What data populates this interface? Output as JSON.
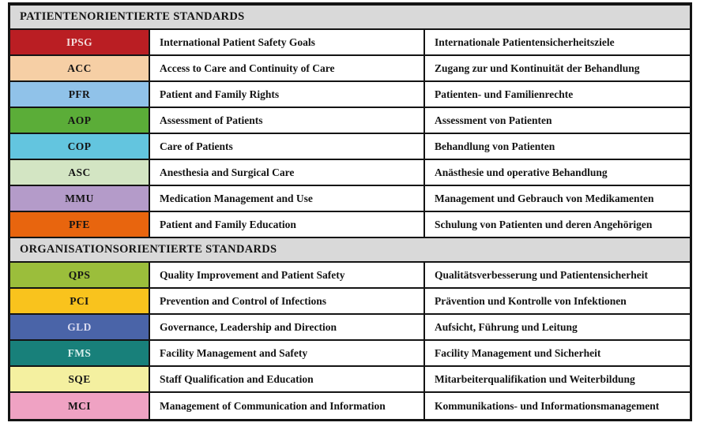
{
  "table": {
    "sections": [
      {
        "title": "PATIENTENORIENTIERTE STANDARDS",
        "rows": [
          {
            "abbr": "IPSG",
            "en": "International Patient Safety Goals",
            "de": "Internationale Patientensicherheitsziele",
            "bg": "#ba1e23",
            "fg": "#f2dbd9"
          },
          {
            "abbr": "ACC",
            "en": "Access to Care and Continuity of Care",
            "de": "Zugang zur und Kontinuität der Behandlung",
            "bg": "#f6cfa5",
            "fg": "#141414"
          },
          {
            "abbr": "PFR",
            "en": "Patient and Family Rights",
            "de": "Patienten- und Familienrechte",
            "bg": "#90c2e9",
            "fg": "#141414"
          },
          {
            "abbr": "AOP",
            "en": "Assessment of Patients",
            "de": "Assessment von Patienten",
            "bg": "#5bad38",
            "fg": "#141414"
          },
          {
            "abbr": "COP",
            "en": "Care of Patients",
            "de": "Behandlung von Patienten",
            "bg": "#63c5df",
            "fg": "#141414"
          },
          {
            "abbr": "ASC",
            "en": "Anesthesia and Surgical Care",
            "de": "Anästhesie und operative Behandlung",
            "bg": "#d3e5c3",
            "fg": "#141414"
          },
          {
            "abbr": "MMU",
            "en": "Medication Management and Use",
            "de": "Management und Gebrauch von Medikamenten",
            "bg": "#b49bc9",
            "fg": "#141414"
          },
          {
            "abbr": "PFE",
            "en": "Patient and Family Education",
            "de": "Schulung von Patienten und deren Angehörigen",
            "bg": "#e8650e",
            "fg": "#141414"
          }
        ]
      },
      {
        "title": "ORGANISATIONSORIENTIERTE STANDARDS",
        "rows": [
          {
            "abbr": "QPS",
            "en": "Quality Improvement and Patient Safety",
            "de": "Qualitätsverbesserung und Patientensicherheit",
            "bg": "#9bbe3b",
            "fg": "#141414"
          },
          {
            "abbr": "PCI",
            "en": "Prevention and Control of Infections",
            "de": "Prävention und Kontrolle von Infektionen",
            "bg": "#f9c31d",
            "fg": "#141414"
          },
          {
            "abbr": "GLD",
            "en": "Governance, Leadership and Direction",
            "de": "Aufsicht, Führung und Leitung",
            "bg": "#4a64a8",
            "fg": "#dadbf0"
          },
          {
            "abbr": "FMS",
            "en": "Facility Management and Safety",
            "de": "Facility Management und Sicherheit",
            "bg": "#18807a",
            "fg": "#d7efec"
          },
          {
            "abbr": "SQE",
            "en": "Staff Qualification and Education",
            "de": "Mitarbeiterqualifikation und Weiterbildung",
            "bg": "#f4f0a0",
            "fg": "#141414"
          },
          {
            "abbr": "MCI",
            "en": "Management of Communication and Information",
            "de": "Kommunikations- und Informationsmanagement",
            "bg": "#efa2c3",
            "fg": "#141414"
          }
        ]
      }
    ]
  }
}
